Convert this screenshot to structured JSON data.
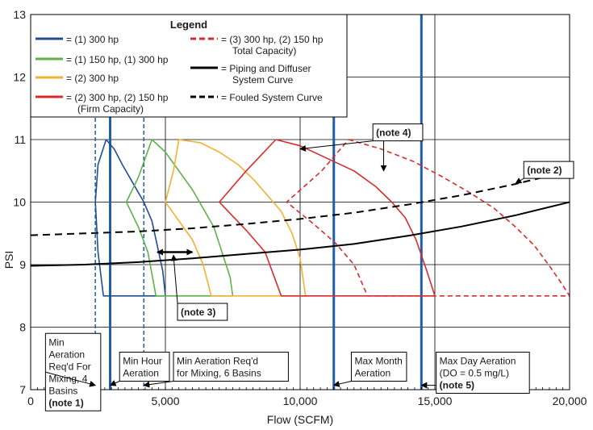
{
  "chart_data": {
    "type": "line",
    "title": "",
    "xlabel": "Flow (SCFM)",
    "ylabel": "PSI",
    "xlim": [
      0,
      20000
    ],
    "ylim": [
      7,
      13
    ],
    "grid": true,
    "x_ticks": [
      0,
      5000,
      10000,
      15000,
      20000
    ],
    "x_tick_labels": [
      "0",
      "5,000",
      "10,000",
      "15,000",
      "20,000"
    ],
    "y_ticks": [
      7,
      8,
      9,
      10,
      11,
      12,
      13
    ],
    "y_tick_labels": [
      "7",
      "8",
      "9",
      "10",
      "11",
      "12",
      "13"
    ],
    "colors": {
      "blue": "#1f4e96",
      "green": "#5fb246",
      "yellow": "#f2b233",
      "red": "#d92b2b",
      "black": "#000000",
      "ref_blue": "#1f5ea8"
    },
    "legend": {
      "title": "Legend",
      "position": "top-left",
      "entries": [
        {
          "label": "= (1) 300 hp",
          "color": "#1f4e96",
          "style": "solid"
        },
        {
          "label": "= (1) 150 hp, (1) 300 hp",
          "color": "#5fb246",
          "style": "solid"
        },
        {
          "label": "= (2) 300 hp",
          "color": "#f2b233",
          "style": "solid"
        },
        {
          "label": "= (2) 300 hp, (2) 150 hp",
          "label2": "(Firm Capacity)",
          "color": "#d92b2b",
          "style": "solid"
        },
        {
          "label": "= (3) 300 hp, (2) 150 hp",
          "label2": "Total Capacity)",
          "color": "#d92b2b",
          "style": "dashed"
        },
        {
          "label": "= Piping and Diffuser",
          "label2": "System Curve",
          "color": "#000000",
          "style": "solid"
        },
        {
          "label": "= Fouled System Curve",
          "color": "#000000",
          "style": "dashed"
        }
      ]
    },
    "series": [
      {
        "name": "(1) 300 hp",
        "color": "#1f4e96",
        "style": "solid",
        "x": [
          2800,
          3100,
          3400,
          3800,
          4200,
          4500,
          4700,
          4900,
          5000,
          2700,
          2500,
          2400,
          2500,
          2800
        ],
        "y": [
          11.0,
          10.85,
          10.6,
          10.3,
          10.0,
          9.7,
          9.3,
          8.9,
          8.5,
          8.5,
          9.2,
          10.0,
          10.6,
          11.0
        ]
      },
      {
        "name": "(1) 150 hp, (1) 300 hp",
        "color": "#5fb246",
        "style": "solid",
        "x": [
          4500,
          5000,
          5500,
          6000,
          6400,
          6800,
          7100,
          7400,
          7500,
          4650,
          4350,
          4000,
          3550,
          4000,
          4500
        ],
        "y": [
          11.0,
          10.8,
          10.5,
          10.2,
          9.9,
          9.6,
          9.2,
          8.8,
          8.5,
          8.5,
          9.2,
          9.6,
          10.0,
          10.4,
          11.0
        ]
      },
      {
        "name": "(2) 300 hp",
        "color": "#f2b233",
        "style": "solid",
        "x": [
          5500,
          6300,
          7000,
          7700,
          8300,
          8800,
          9300,
          9700,
          10000,
          10200,
          6700,
          6400,
          6000,
          5000,
          5300,
          5500
        ],
        "y": [
          11.0,
          10.95,
          10.8,
          10.6,
          10.35,
          10.1,
          9.85,
          9.5,
          9.1,
          8.5,
          8.5,
          9.0,
          9.4,
          10.0,
          10.5,
          11.0
        ]
      },
      {
        "name": "(2) 300 hp, (2) 150 hp (Firm Capacity)",
        "color": "#d92b2b",
        "style": "solid",
        "x": [
          9100,
          10000,
          11000,
          12000,
          12800,
          13400,
          13900,
          14300,
          14700,
          15000,
          9300,
          8700,
          8000,
          7000,
          8000,
          9100
        ],
        "y": [
          11.0,
          10.9,
          10.7,
          10.5,
          10.25,
          10.0,
          9.75,
          9.4,
          8.9,
          8.5,
          8.5,
          9.2,
          9.55,
          10.0,
          10.5,
          11.0
        ]
      },
      {
        "name": "(3) 300 hp, (2) 150 hp Total Capacity)",
        "color": "#d92b2b",
        "style": "dashed",
        "x": [
          11800,
          13000,
          14200,
          15300,
          16300,
          17200,
          18000,
          18700,
          19300,
          19700,
          20000,
          12500,
          12000,
          11300,
          10500,
          9500,
          10800,
          11800
        ],
        "y": [
          11.0,
          10.85,
          10.65,
          10.4,
          10.15,
          9.9,
          9.6,
          9.3,
          8.95,
          8.7,
          8.5,
          8.5,
          9.0,
          9.35,
          9.65,
          10.0,
          10.5,
          11.0
        ]
      },
      {
        "name": "Piping and Diffuser System Curve",
        "color": "#000000",
        "style": "solid",
        "x": [
          0,
          2000,
          4000,
          6000,
          8000,
          10000,
          12000,
          14000,
          16000,
          18000,
          20000
        ],
        "y": [
          8.98,
          9.0,
          9.04,
          9.1,
          9.17,
          9.24,
          9.33,
          9.46,
          9.61,
          9.79,
          10.0
        ]
      },
      {
        "name": "Fouled System Curve",
        "color": "#000000",
        "style": "dashed",
        "x": [
          0,
          2000,
          4000,
          6000,
          8000,
          10000,
          12000,
          14000,
          16000,
          18000,
          20000
        ],
        "y": [
          9.47,
          9.5,
          9.53,
          9.58,
          9.65,
          9.73,
          9.83,
          9.96,
          10.11,
          10.29,
          10.5
        ]
      }
    ],
    "vertical_lines": [
      {
        "name": "min-aeration-4-basins",
        "x": 2400,
        "color": "#1f5ea8",
        "style": "dashed",
        "width": 1.5
      },
      {
        "name": "min-hour-aeration",
        "x": 2950,
        "color": "#1f5ea8",
        "style": "solid",
        "width": 3
      },
      {
        "name": "min-aeration-6-basins",
        "x": 4200,
        "color": "#1f5ea8",
        "style": "dashed",
        "width": 1.5
      },
      {
        "name": "max-month-aeration",
        "x": 11250,
        "color": "#1f5ea8",
        "style": "solid",
        "width": 3
      },
      {
        "name": "max-day-aeration",
        "x": 14500,
        "color": "#1f5ea8",
        "style": "solid",
        "width": 3
      }
    ],
    "annotations": [
      {
        "name": "note4",
        "lines": [
          "(note 4)"
        ],
        "bold": [
          true
        ],
        "x": 12700,
        "y": 11.25,
        "arrows": [
          {
            "x": 10000,
            "y": 10.85
          },
          {
            "x": 13100,
            "y": 10.5
          }
        ]
      },
      {
        "name": "note2",
        "lines": [
          "(note 2)"
        ],
        "bold": [
          true
        ],
        "x": 18300,
        "y": 10.65,
        "arrows": [
          {
            "x": 18000,
            "y": 10.3
          }
        ]
      },
      {
        "name": "note3",
        "lines": [
          "(note 3)"
        ],
        "bold": [
          true
        ],
        "x": 5450,
        "y": 8.38,
        "arrows": [
          {
            "x": 5300,
            "y": 9.15
          }
        ]
      },
      {
        "name": "min-aeration-4",
        "lines": [
          "Min",
          "Aeration",
          "Req'd For",
          "Mixing, 4",
          "Basins",
          "(note 1)"
        ],
        "bold": [
          false,
          false,
          false,
          false,
          false,
          true
        ],
        "x": 550,
        "y": 7.9,
        "arrows": [
          {
            "x": 2400,
            "y": 7.07
          }
        ]
      },
      {
        "name": "min-hour",
        "lines": [
          "Min Hour",
          "Aeration"
        ],
        "bold": [
          false,
          false
        ],
        "x": 3300,
        "y": 7.6,
        "arrows": [
          {
            "x": 2950,
            "y": 7.07
          }
        ]
      },
      {
        "name": "min-aeration-6",
        "lines": [
          "Min Aeration Req'd",
          "for Mixing, 6 Basins"
        ],
        "bold": [
          false,
          false
        ],
        "x": 5300,
        "y": 7.6,
        "arrows": [
          {
            "x": 4200,
            "y": 7.07
          }
        ]
      },
      {
        "name": "max-month",
        "lines": [
          "Max Month",
          "Aeration"
        ],
        "bold": [
          false,
          false
        ],
        "x": 11900,
        "y": 7.6,
        "arrows": [
          {
            "x": 11250,
            "y": 7.07
          }
        ]
      },
      {
        "name": "max-day",
        "lines": [
          "Max Day Aeration",
          "(DO = 0.5 mg/L)",
          "(note 5)"
        ],
        "bold": [
          false,
          false,
          true
        ],
        "x": 15050,
        "y": 7.6,
        "arrows": [
          {
            "x": 14500,
            "y": 7.07
          }
        ]
      }
    ],
    "note3_double_arrow": {
      "x1": 4700,
      "x2": 6000,
      "y": 9.2
    }
  }
}
